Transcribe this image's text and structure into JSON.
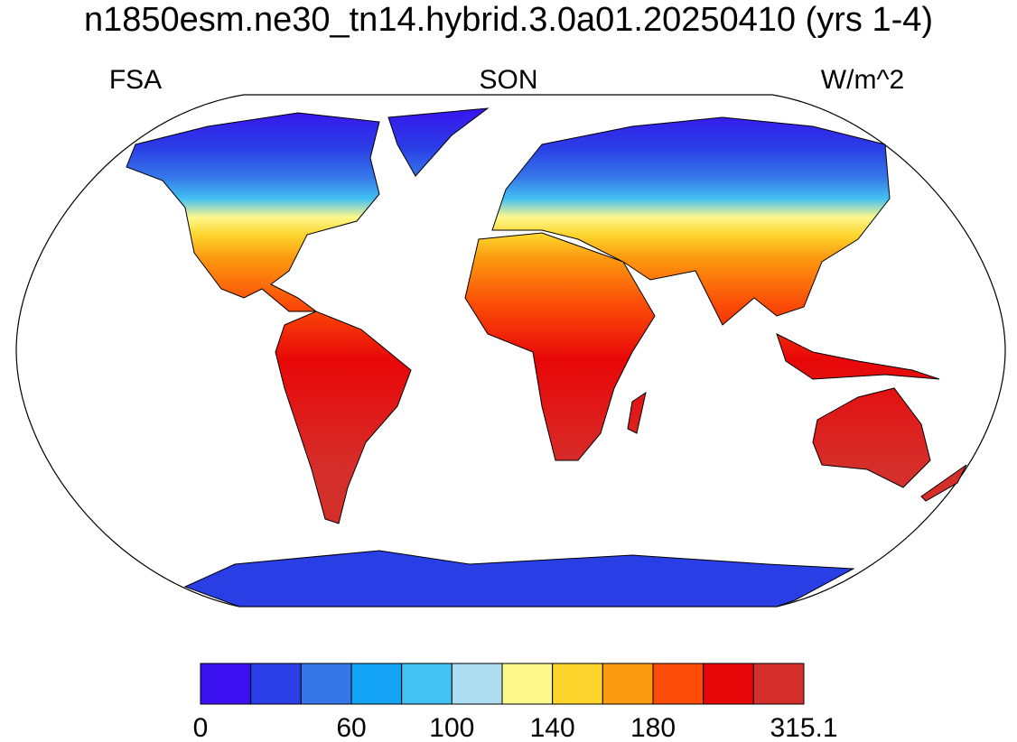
{
  "title": "n1850esm.ne30_tn14.hybrid.3.0a01.20250410 (yrs 1-4)",
  "left_string": "FSA",
  "center_string": "SON",
  "right_string": "W/m^2",
  "colorbar": {
    "colors": [
      "#3a0ff0",
      "#2a3ee6",
      "#3577e8",
      "#14a4f5",
      "#43c1f2",
      "#abdcf0",
      "#fdf88c",
      "#fdd42c",
      "#fc9b10",
      "#fb4c07",
      "#e80708",
      "#d52f2b"
    ],
    "labels": [
      "0",
      "60",
      "100",
      "140",
      "180",
      "315.1"
    ]
  }
}
